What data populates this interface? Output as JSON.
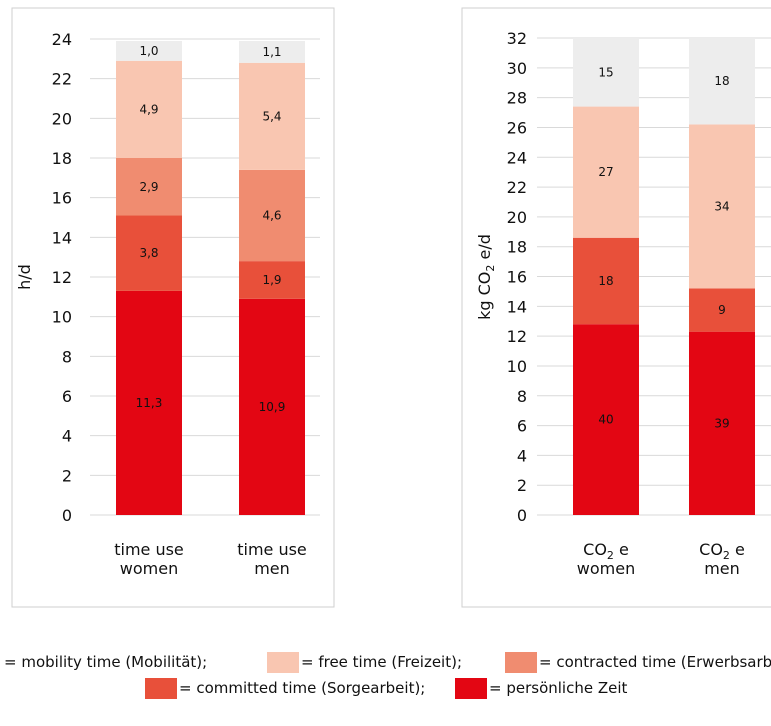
{
  "chart_data": [
    {
      "type": "bar",
      "stacked": true,
      "ylabel": "h/d",
      "ylim": [
        0,
        24
      ],
      "yticks": [
        0,
        2,
        4,
        6,
        8,
        10,
        12,
        14,
        16,
        18,
        20,
        22,
        24
      ],
      "grid": true,
      "categories": [
        [
          "time use",
          "women"
        ],
        [
          "time use",
          "men"
        ]
      ],
      "series": [
        {
          "name": "persönliche Zeit",
          "color": "#e30613",
          "values": [
            11.3,
            10.9
          ],
          "labels": [
            "11,3",
            "10,9"
          ]
        },
        {
          "name": "committed time (Sorgearbeit)",
          "color": "#e8503a",
          "values": [
            3.8,
            1.9
          ],
          "labels": [
            "3,8",
            "1,9"
          ]
        },
        {
          "name": "contracted time (Erwerbsarbeit)",
          "color": "#f08c70",
          "values": [
            2.9,
            4.6
          ],
          "labels": [
            "2,9",
            "4,6"
          ]
        },
        {
          "name": "free time (Freizeit)",
          "color": "#f9c6b1",
          "values": [
            4.9,
            5.4
          ],
          "labels": [
            "4,9",
            "5,4"
          ]
        },
        {
          "name": "mobility time (Mobilität)",
          "color": "#ededed",
          "values": [
            1.0,
            1.1
          ],
          "labels": [
            "1,0",
            "1,1"
          ]
        }
      ]
    },
    {
      "type": "bar",
      "stacked": true,
      "ylabel": "kg CO2 e/d",
      "ylim": [
        0,
        32
      ],
      "yticks": [
        0,
        2,
        4,
        6,
        8,
        10,
        12,
        14,
        16,
        18,
        20,
        22,
        24,
        26,
        28,
        30,
        32
      ],
      "grid": true,
      "categories": [
        [
          "CO2 e",
          "women"
        ],
        [
          "CO2 e",
          "men"
        ]
      ],
      "note": "segment labels are percent shares of the total bar",
      "series": [
        {
          "name": "persönliche Zeit",
          "color": "#e30613",
          "values": [
            12.8,
            12.3
          ],
          "labels": [
            "40",
            "39"
          ]
        },
        {
          "name": "committed time (Sorgearbeit)",
          "color": "#e8503a",
          "values": [
            5.8,
            2.9
          ],
          "labels": [
            "18",
            "9"
          ]
        },
        {
          "name": "contracted time (Erwerbsarbeit)",
          "color": "#f08c70",
          "values": [
            0.0,
            0.0
          ],
          "labels": [
            "",
            ""
          ]
        },
        {
          "name": "free time (Freizeit)",
          "color": "#f9c6b1",
          "values": [
            8.8,
            11.0
          ],
          "labels": [
            "27",
            "34"
          ]
        },
        {
          "name": "mobility time (Mobilität)",
          "color": "#ededed",
          "values": [
            4.6,
            5.8
          ],
          "labels": [
            "15",
            "18"
          ]
        }
      ]
    }
  ],
  "legend": {
    "row1": [
      {
        "text": "= mobility time (Mobilität);",
        "swatch": ""
      },
      {
        "text": "= free time (Freizeit);",
        "swatch": "#f9c6b1"
      },
      {
        "text": "= contracted time (Erwerbsarbeit)",
        "swatch": "#f08c70"
      }
    ],
    "row2": [
      {
        "text": "= committed time (Sorgearbeit);",
        "swatch": "#e8503a"
      },
      {
        "text": "= persönliche Zeit",
        "swatch": "#e30613"
      }
    ]
  }
}
